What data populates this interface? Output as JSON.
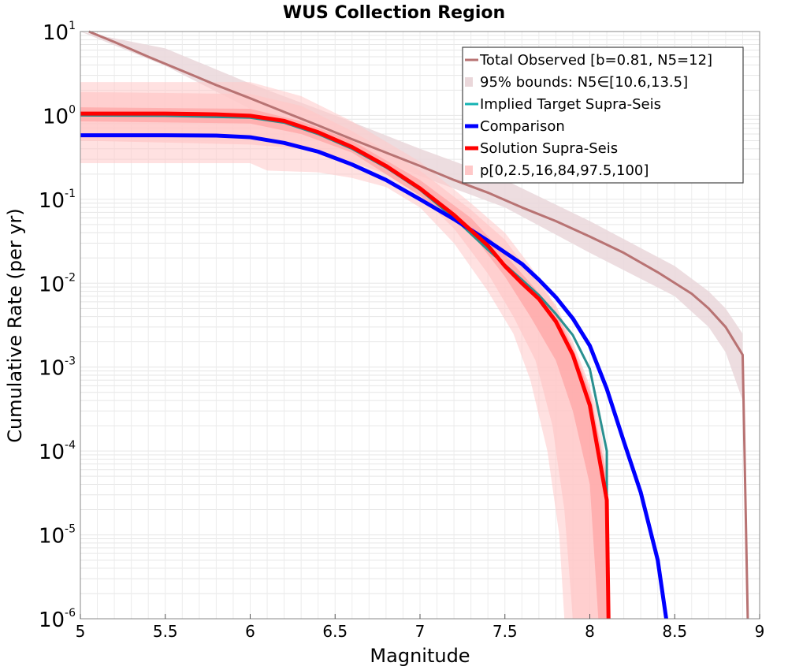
{
  "chart_data": {
    "type": "line",
    "title": "WUS Collection Region",
    "xlabel": "Magnitude",
    "ylabel": "Cumulative Rate (per yr)",
    "xlim": [
      5,
      9
    ],
    "ylim": [
      1e-06,
      10
    ],
    "yscale": "log",
    "grid": true,
    "legend_position": "top-right",
    "x_ticks": [
      "5",
      "5.5",
      "6",
      "6.5",
      "7",
      "7.5",
      "8",
      "8.5",
      "9"
    ],
    "y_ticks": [
      {
        "base": "10",
        "exp": "-6",
        "value": 1e-06
      },
      {
        "base": "10",
        "exp": "-5",
        "value": 1e-05
      },
      {
        "base": "10",
        "exp": "-4",
        "value": 0.0001
      },
      {
        "base": "10",
        "exp": "-3",
        "value": 0.001
      },
      {
        "base": "10",
        "exp": "-2",
        "value": 0.01
      },
      {
        "base": "10",
        "exp": "-1",
        "value": 0.1
      },
      {
        "base": "10",
        "exp": "0",
        "value": 1
      },
      {
        "base": "10",
        "exp": "1",
        "value": 10
      }
    ],
    "legend": [
      {
        "label": "Total Observed [b=0.81, N5=12]",
        "color": "#b87373",
        "kind": "line",
        "width": 3
      },
      {
        "label": "95% bounds: N5∈[10.6,13.5]",
        "color": "#ead7da",
        "kind": "band"
      },
      {
        "label": "Implied Target Supra-Seis",
        "color": "#14b3b3",
        "kind": "line",
        "width": 3
      },
      {
        "label": "Comparison",
        "color": "#0000ff",
        "kind": "line",
        "width": 5
      },
      {
        "label": "Solution Supra-Seis",
        "color": "#ff0000",
        "kind": "line",
        "width": 5
      },
      {
        "label": "p[0,2.5,16,84,97.5,100]",
        "color": "#ffc8c8",
        "kind": "band"
      }
    ],
    "series": [
      {
        "name": "Total Observed [b=0.81, N5=12]",
        "color": "#b87373",
        "width": 3,
        "points": [
          [
            5.05,
            10
          ],
          [
            5.2,
            7.5
          ],
          [
            5.4,
            5.0
          ],
          [
            5.6,
            3.4
          ],
          [
            5.8,
            2.3
          ],
          [
            6.0,
            1.6
          ],
          [
            6.2,
            1.1
          ],
          [
            6.4,
            0.76
          ],
          [
            6.6,
            0.52
          ],
          [
            6.8,
            0.36
          ],
          [
            7.0,
            0.25
          ],
          [
            7.2,
            0.17
          ],
          [
            7.4,
            0.12
          ],
          [
            7.6,
            0.08
          ],
          [
            7.8,
            0.055
          ],
          [
            8.0,
            0.036
          ],
          [
            8.2,
            0.023
          ],
          [
            8.4,
            0.0135
          ],
          [
            8.6,
            0.0075
          ],
          [
            8.7,
            0.005
          ],
          [
            8.8,
            0.003
          ],
          [
            8.9,
            0.0014
          ],
          [
            8.93,
            1e-06
          ]
        ]
      },
      {
        "name": "Implied Target Supra-Seis",
        "color": "#2a9090",
        "width": 3,
        "points": [
          [
            5,
            1.0
          ],
          [
            5.5,
            0.99
          ],
          [
            6.0,
            0.94
          ],
          [
            6.2,
            0.82
          ],
          [
            6.4,
            0.6
          ],
          [
            6.6,
            0.4
          ],
          [
            6.8,
            0.24
          ],
          [
            7.0,
            0.13
          ],
          [
            7.2,
            0.06
          ],
          [
            7.4,
            0.025
          ],
          [
            7.6,
            0.011
          ],
          [
            7.7,
            0.0072
          ],
          [
            7.8,
            0.0043
          ],
          [
            7.9,
            0.0024
          ],
          [
            8.0,
            0.00095
          ],
          [
            8.1,
            0.0001
          ],
          [
            8.1,
            1e-05
          ]
        ]
      },
      {
        "name": "Comparison",
        "color": "#0000ff",
        "width": 5,
        "points": [
          [
            5,
            0.58
          ],
          [
            5.5,
            0.58
          ],
          [
            5.8,
            0.575
          ],
          [
            6.0,
            0.55
          ],
          [
            6.2,
            0.47
          ],
          [
            6.4,
            0.37
          ],
          [
            6.6,
            0.26
          ],
          [
            6.8,
            0.17
          ],
          [
            7.0,
            0.1
          ],
          [
            7.2,
            0.058
          ],
          [
            7.4,
            0.032
          ],
          [
            7.6,
            0.017
          ],
          [
            7.7,
            0.011
          ],
          [
            7.8,
            0.0068
          ],
          [
            7.9,
            0.0038
          ],
          [
            8.0,
            0.0018
          ],
          [
            8.1,
            0.00055
          ],
          [
            8.2,
            0.00013
          ],
          [
            8.3,
            3.2e-05
          ],
          [
            8.4,
            5e-06
          ],
          [
            8.45,
            1e-06
          ]
        ]
      },
      {
        "name": "Solution Supra-Seis",
        "color": "#ff0000",
        "width": 5,
        "points": [
          [
            5,
            1.05
          ],
          [
            5.5,
            1.05
          ],
          [
            5.8,
            1.03
          ],
          [
            6.0,
            0.99
          ],
          [
            6.2,
            0.86
          ],
          [
            6.4,
            0.63
          ],
          [
            6.6,
            0.42
          ],
          [
            6.8,
            0.25
          ],
          [
            7.0,
            0.135
          ],
          [
            7.2,
            0.065
          ],
          [
            7.4,
            0.028
          ],
          [
            7.5,
            0.016
          ],
          [
            7.6,
            0.01
          ],
          [
            7.7,
            0.0065
          ],
          [
            7.8,
            0.0035
          ],
          [
            7.9,
            0.0014
          ],
          [
            8.0,
            0.00035
          ],
          [
            8.1,
            2.6e-05
          ],
          [
            8.11,
            1e-06
          ]
        ]
      }
    ],
    "bands": [
      {
        "name": "95% bounds: N5∈[10.6,13.5]",
        "color": "#ead7da",
        "opacity": 0.85,
        "upper": [
          [
            5.0,
            10
          ],
          [
            5.5,
            6.3
          ],
          [
            6.0,
            2.4
          ],
          [
            6.5,
            1.0
          ],
          [
            7.0,
            0.4
          ],
          [
            7.5,
            0.17
          ],
          [
            8.0,
            0.055
          ],
          [
            8.5,
            0.016
          ],
          [
            8.7,
            0.008
          ],
          [
            8.8,
            0.005
          ],
          [
            8.9,
            0.0025
          ]
        ],
        "lower": [
          [
            5.0,
            10
          ],
          [
            5.5,
            3.9
          ],
          [
            6.0,
            1.2
          ],
          [
            6.5,
            0.5
          ],
          [
            7.0,
            0.19
          ],
          [
            7.5,
            0.08
          ],
          [
            8.0,
            0.023
          ],
          [
            8.5,
            0.007
          ],
          [
            8.7,
            0.003
          ],
          [
            8.8,
            0.0015
          ],
          [
            8.9,
            0.0004
          ]
        ]
      },
      {
        "name": "p[0,2.5,16,84,97.5,100]",
        "color": "#ffc8c8",
        "opacity": 0.55,
        "upper": [
          [
            5,
            2.5
          ],
          [
            6.0,
            2.5
          ],
          [
            6.3,
            1.7
          ],
          [
            6.6,
            0.85
          ],
          [
            7.0,
            0.28
          ],
          [
            7.3,
            0.09
          ],
          [
            7.5,
            0.04
          ],
          [
            7.65,
            0.016
          ],
          [
            7.75,
            0.008
          ],
          [
            7.85,
            0.003
          ],
          [
            7.95,
            0.001
          ],
          [
            8.05,
            0.0003
          ],
          [
            8.1,
            6e-05
          ],
          [
            8.12,
            1e-06
          ]
        ],
        "lower": [
          [
            5,
            0.27
          ],
          [
            6.0,
            0.27
          ],
          [
            6.1,
            0.22
          ],
          [
            6.4,
            0.21
          ],
          [
            6.6,
            0.18
          ],
          [
            6.8,
            0.14
          ],
          [
            7.0,
            0.08
          ],
          [
            7.2,
            0.03
          ],
          [
            7.4,
            0.008
          ],
          [
            7.55,
            0.0025
          ],
          [
            7.65,
            0.0007
          ],
          [
            7.75,
            0.0001
          ],
          [
            7.82,
            1e-05
          ],
          [
            7.85,
            1e-06
          ]
        ]
      },
      {
        "name": "p[0,2.5,16,84,97.5,100]",
        "color": "#ffc8c8",
        "opacity": 0.7,
        "upper": [
          [
            5,
            1.9
          ],
          [
            6.0,
            1.8
          ],
          [
            6.3,
            1.3
          ],
          [
            6.6,
            0.65
          ],
          [
            7.0,
            0.22
          ],
          [
            7.3,
            0.075
          ],
          [
            7.5,
            0.033
          ],
          [
            7.65,
            0.013
          ],
          [
            7.8,
            0.0055
          ],
          [
            7.9,
            0.002
          ],
          [
            8.0,
            0.0006
          ],
          [
            8.08,
            8e-05
          ],
          [
            8.1,
            1e-06
          ]
        ],
        "lower": [
          [
            5,
            0.5
          ],
          [
            6.0,
            0.45
          ],
          [
            6.3,
            0.4
          ],
          [
            6.6,
            0.28
          ],
          [
            6.8,
            0.2
          ],
          [
            7.0,
            0.11
          ],
          [
            7.2,
            0.045
          ],
          [
            7.4,
            0.013
          ],
          [
            7.55,
            0.004
          ],
          [
            7.68,
            0.0012
          ],
          [
            7.78,
            0.0002
          ],
          [
            7.85,
            2e-05
          ],
          [
            7.9,
            1e-06
          ]
        ]
      },
      {
        "name": "p[0,2.5,16,84,97.5,100]",
        "color": "#ffa5a5",
        "opacity": 0.75,
        "upper": [
          [
            5,
            1.25
          ],
          [
            6.0,
            1.2
          ],
          [
            6.3,
            0.85
          ],
          [
            6.6,
            0.5
          ],
          [
            7.0,
            0.17
          ],
          [
            7.3,
            0.06
          ],
          [
            7.5,
            0.022
          ],
          [
            7.65,
            0.01
          ],
          [
            7.8,
            0.0045
          ],
          [
            7.9,
            0.0017
          ],
          [
            8.0,
            0.0005
          ],
          [
            8.1,
            5e-05
          ],
          [
            8.12,
            1e-06
          ]
        ],
        "lower": [
          [
            5,
            0.85
          ],
          [
            6.0,
            0.8
          ],
          [
            6.3,
            0.6
          ],
          [
            6.6,
            0.36
          ],
          [
            7.0,
            0.11
          ],
          [
            7.3,
            0.04
          ],
          [
            7.5,
            0.012
          ],
          [
            7.65,
            0.004
          ],
          [
            7.8,
            0.0012
          ],
          [
            7.9,
            0.0003
          ],
          [
            8.0,
            4e-05
          ],
          [
            8.05,
            1e-06
          ]
        ]
      }
    ]
  }
}
